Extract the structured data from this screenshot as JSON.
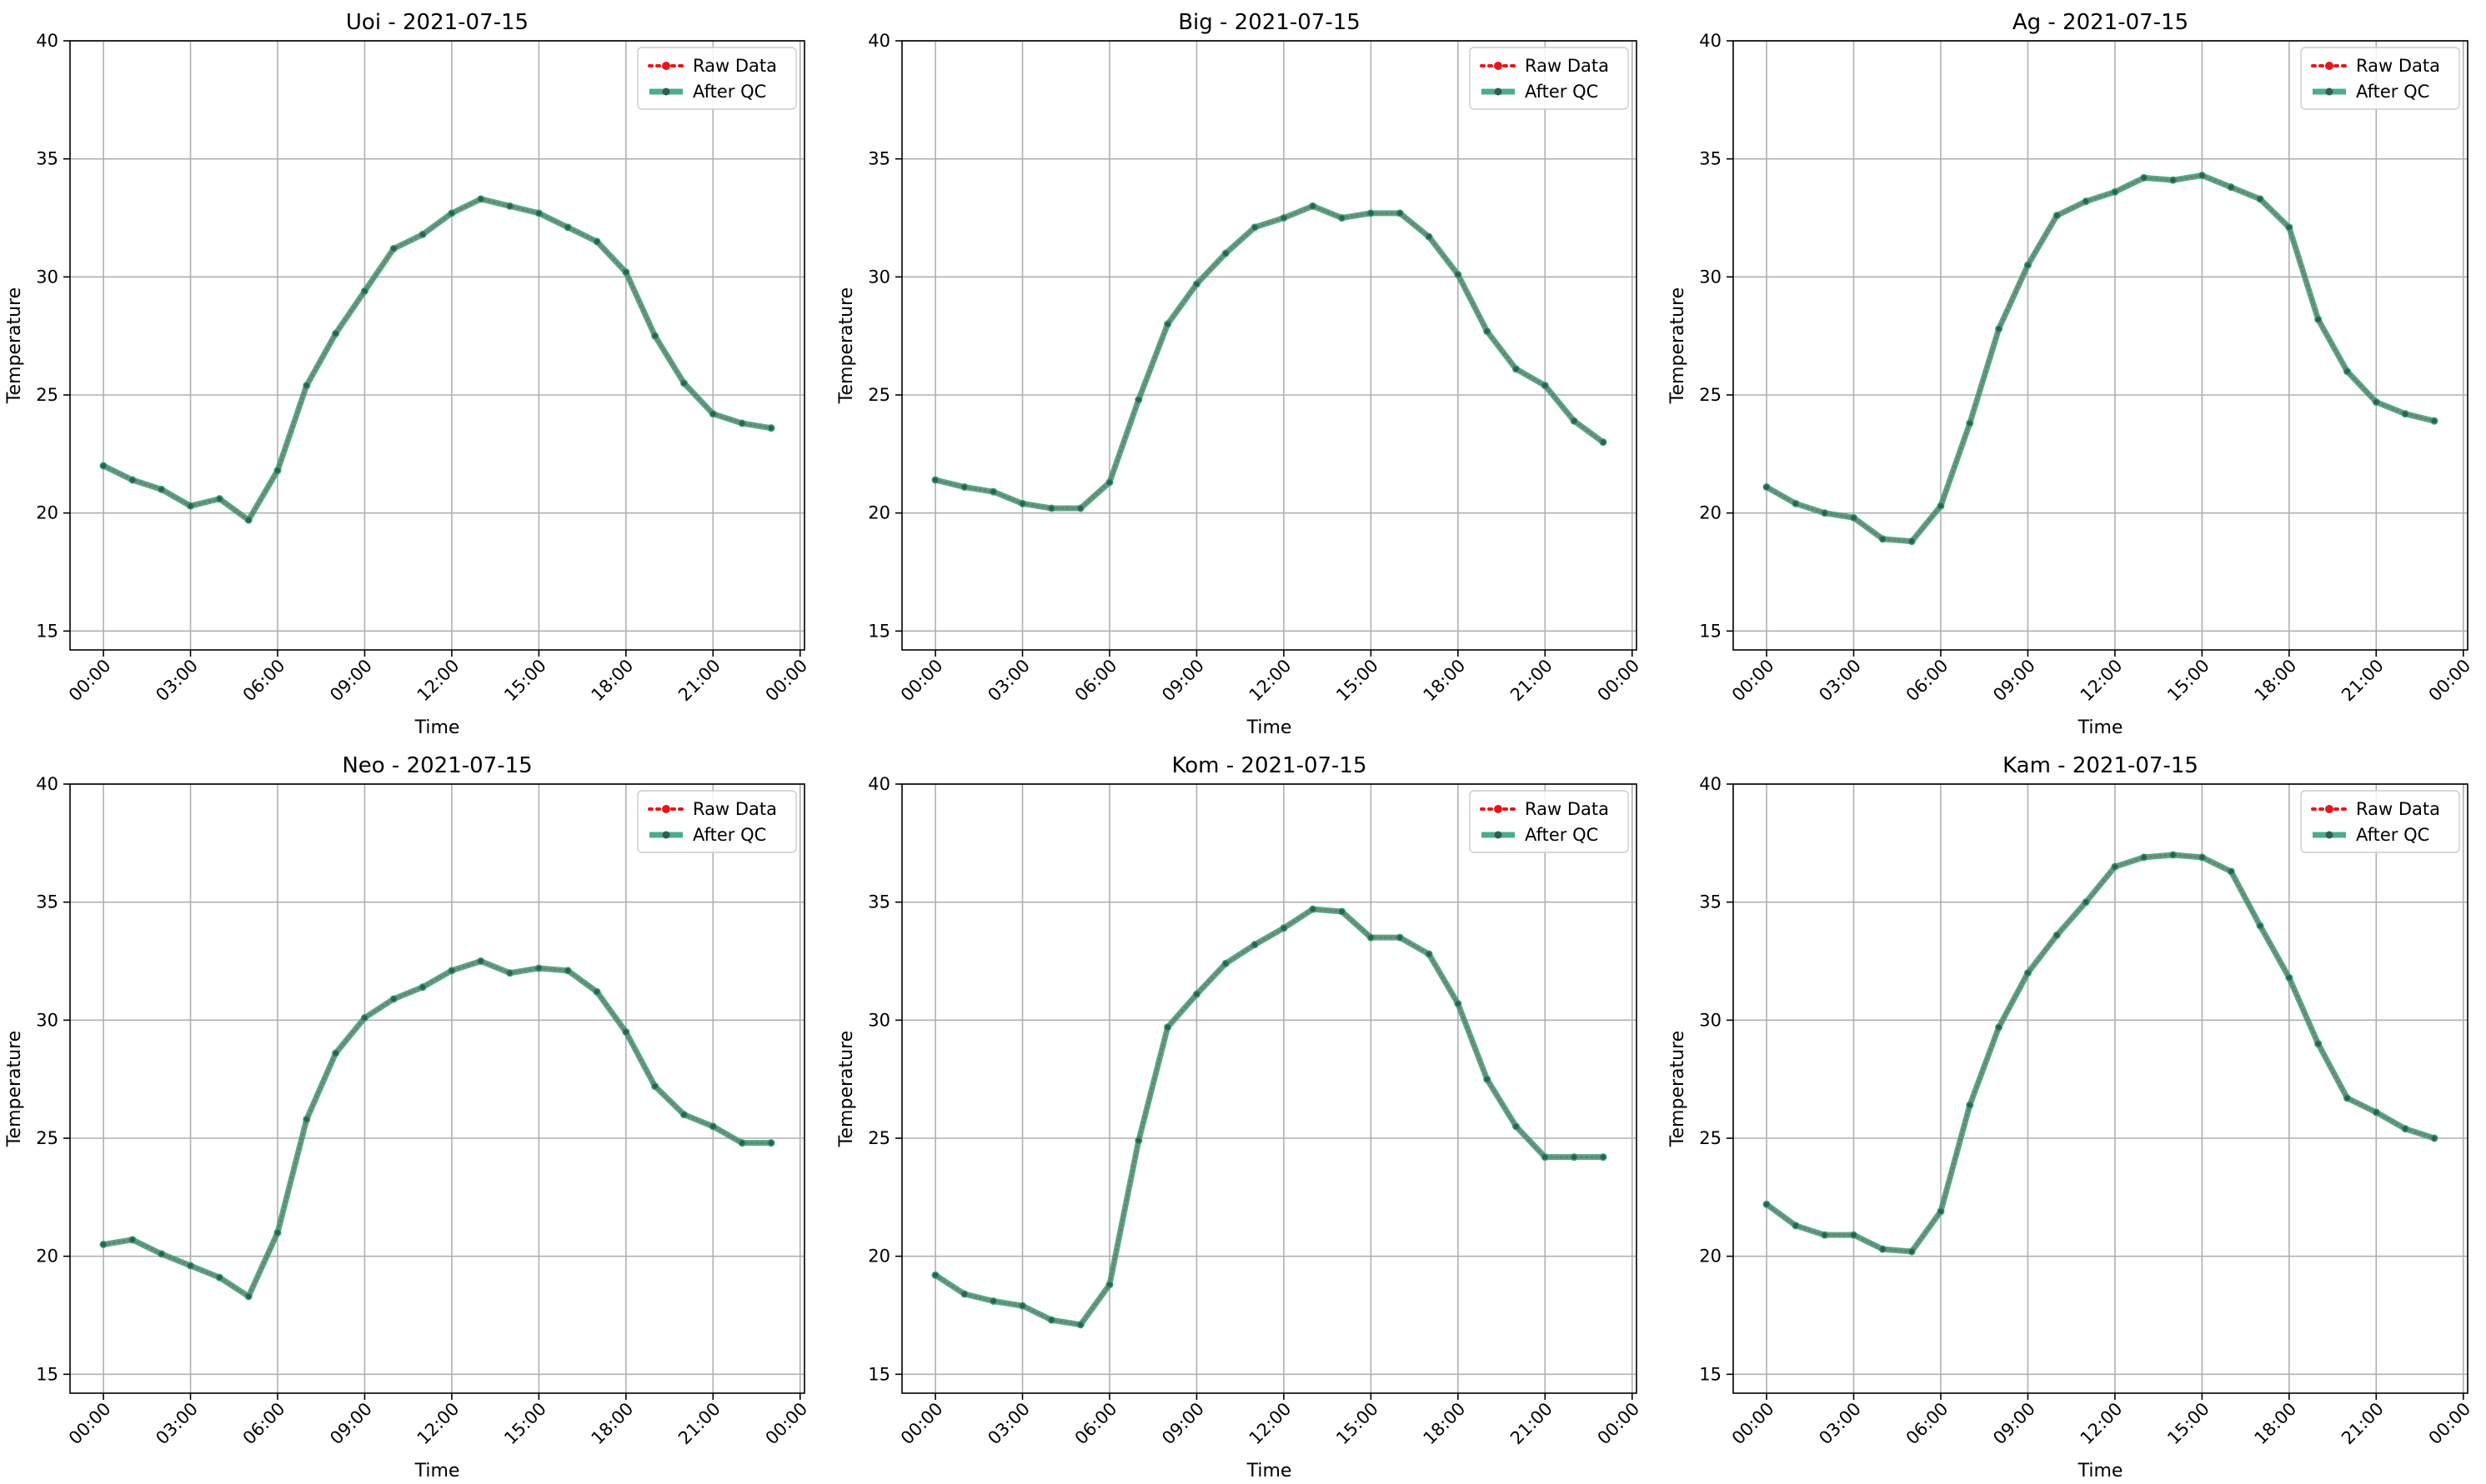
{
  "chart_data": [
    {
      "type": "line",
      "title": "Uoi - 2021-07-15",
      "xlabel": "Time",
      "ylabel": "Temperature",
      "x": [
        "00:00",
        "01:00",
        "02:00",
        "03:00",
        "04:00",
        "05:00",
        "06:00",
        "07:00",
        "08:00",
        "09:00",
        "10:00",
        "11:00",
        "12:00",
        "13:00",
        "14:00",
        "15:00",
        "16:00",
        "17:00",
        "18:00",
        "19:00",
        "20:00",
        "21:00",
        "22:00",
        "23:00"
      ],
      "xticks": [
        "00:00",
        "03:00",
        "06:00",
        "09:00",
        "12:00",
        "15:00",
        "18:00",
        "21:00",
        "00:00"
      ],
      "yticks": [
        "15",
        "20",
        "25",
        "30",
        "35",
        "40"
      ],
      "ylim": [
        14.2,
        40
      ],
      "grid": true,
      "legend": "top-right",
      "series": [
        {
          "name": "Raw Data",
          "style": "dotted",
          "color": "#e8161b",
          "values": [
            22.0,
            21.4,
            21.0,
            20.3,
            20.6,
            19.7,
            21.8,
            25.4,
            27.6,
            29.4,
            31.2,
            31.8,
            32.7,
            33.3,
            33.0,
            32.7,
            32.1,
            31.5,
            30.2,
            27.5,
            25.5,
            24.2,
            23.8,
            23.6
          ]
        },
        {
          "name": "After QC",
          "style": "solid",
          "color": "#2e9e79",
          "values": [
            22.0,
            21.4,
            21.0,
            20.3,
            20.6,
            19.7,
            21.8,
            25.4,
            27.6,
            29.4,
            31.2,
            31.8,
            32.7,
            33.3,
            33.0,
            32.7,
            32.1,
            31.5,
            30.2,
            27.5,
            25.5,
            24.2,
            23.8,
            23.6
          ]
        }
      ]
    },
    {
      "type": "line",
      "title": "Big - 2021-07-15",
      "xlabel": "Time",
      "ylabel": "Temperature",
      "x": [
        "00:00",
        "01:00",
        "02:00",
        "03:00",
        "04:00",
        "05:00",
        "06:00",
        "07:00",
        "08:00",
        "09:00",
        "10:00",
        "11:00",
        "12:00",
        "13:00",
        "14:00",
        "15:00",
        "16:00",
        "17:00",
        "18:00",
        "19:00",
        "20:00",
        "21:00",
        "22:00",
        "23:00"
      ],
      "xticks": [
        "00:00",
        "03:00",
        "06:00",
        "09:00",
        "12:00",
        "15:00",
        "18:00",
        "21:00",
        "00:00"
      ],
      "yticks": [
        "15",
        "20",
        "25",
        "30",
        "35",
        "40"
      ],
      "ylim": [
        14.2,
        40
      ],
      "grid": true,
      "legend": "top-right",
      "series": [
        {
          "name": "Raw Data",
          "style": "dotted",
          "color": "#e8161b",
          "values": [
            21.4,
            21.1,
            20.9,
            20.4,
            20.2,
            20.2,
            21.3,
            24.8,
            28.0,
            29.7,
            31.0,
            32.1,
            32.5,
            33.0,
            32.5,
            32.7,
            32.7,
            31.7,
            30.1,
            27.7,
            26.1,
            25.4,
            23.9,
            23.0
          ]
        },
        {
          "name": "After QC",
          "style": "solid",
          "color": "#2e9e79",
          "values": [
            21.4,
            21.1,
            20.9,
            20.4,
            20.2,
            20.2,
            21.3,
            24.8,
            28.0,
            29.7,
            31.0,
            32.1,
            32.5,
            33.0,
            32.5,
            32.7,
            32.7,
            31.7,
            30.1,
            27.7,
            26.1,
            25.4,
            23.9,
            23.0
          ]
        }
      ]
    },
    {
      "type": "line",
      "title": "Ag - 2021-07-15",
      "xlabel": "Time",
      "ylabel": "Temperature",
      "x": [
        "00:00",
        "01:00",
        "02:00",
        "03:00",
        "04:00",
        "05:00",
        "06:00",
        "07:00",
        "08:00",
        "09:00",
        "10:00",
        "11:00",
        "12:00",
        "13:00",
        "14:00",
        "15:00",
        "16:00",
        "17:00",
        "18:00",
        "19:00",
        "20:00",
        "21:00",
        "22:00",
        "23:00"
      ],
      "xticks": [
        "00:00",
        "03:00",
        "06:00",
        "09:00",
        "12:00",
        "15:00",
        "18:00",
        "21:00",
        "00:00"
      ],
      "yticks": [
        "15",
        "20",
        "25",
        "30",
        "35",
        "40"
      ],
      "ylim": [
        14.2,
        40
      ],
      "grid": true,
      "legend": "top-right",
      "series": [
        {
          "name": "Raw Data",
          "style": "dotted",
          "color": "#e8161b",
          "values": [
            21.1,
            20.4,
            20.0,
            19.8,
            18.9,
            18.8,
            20.3,
            23.8,
            27.8,
            30.5,
            32.6,
            33.2,
            33.6,
            34.2,
            34.1,
            34.3,
            33.8,
            33.3,
            32.1,
            28.2,
            26.0,
            24.7,
            24.2,
            23.9
          ]
        },
        {
          "name": "After QC",
          "style": "solid",
          "color": "#2e9e79",
          "values": [
            21.1,
            20.4,
            20.0,
            19.8,
            18.9,
            18.8,
            20.3,
            23.8,
            27.8,
            30.5,
            32.6,
            33.2,
            33.6,
            34.2,
            34.1,
            34.3,
            33.8,
            33.3,
            32.1,
            28.2,
            26.0,
            24.7,
            24.2,
            23.9
          ]
        }
      ]
    },
    {
      "type": "line",
      "title": "Neo - 2021-07-15",
      "xlabel": "Time",
      "ylabel": "Temperature",
      "x": [
        "00:00",
        "01:00",
        "02:00",
        "03:00",
        "04:00",
        "05:00",
        "06:00",
        "07:00",
        "08:00",
        "09:00",
        "10:00",
        "11:00",
        "12:00",
        "13:00",
        "14:00",
        "15:00",
        "16:00",
        "17:00",
        "18:00",
        "19:00",
        "20:00",
        "21:00",
        "22:00",
        "23:00"
      ],
      "xticks": [
        "00:00",
        "03:00",
        "06:00",
        "09:00",
        "12:00",
        "15:00",
        "18:00",
        "21:00",
        "00:00"
      ],
      "yticks": [
        "15",
        "20",
        "25",
        "30",
        "35",
        "40"
      ],
      "ylim": [
        14.2,
        40
      ],
      "grid": true,
      "legend": "top-right",
      "series": [
        {
          "name": "Raw Data",
          "style": "dotted",
          "color": "#e8161b",
          "values": [
            20.5,
            20.7,
            20.1,
            19.6,
            19.1,
            18.3,
            21.0,
            25.8,
            28.6,
            30.1,
            30.9,
            31.4,
            32.1,
            32.5,
            32.0,
            32.2,
            32.1,
            31.2,
            29.5,
            27.2,
            26.0,
            25.5,
            24.8,
            24.8
          ]
        },
        {
          "name": "After QC",
          "style": "solid",
          "color": "#2e9e79",
          "values": [
            20.5,
            20.7,
            20.1,
            19.6,
            19.1,
            18.3,
            21.0,
            25.8,
            28.6,
            30.1,
            30.9,
            31.4,
            32.1,
            32.5,
            32.0,
            32.2,
            32.1,
            31.2,
            29.5,
            27.2,
            26.0,
            25.5,
            24.8,
            24.8
          ]
        }
      ]
    },
    {
      "type": "line",
      "title": "Kom - 2021-07-15",
      "xlabel": "Time",
      "ylabel": "Temperature",
      "x": [
        "00:00",
        "01:00",
        "02:00",
        "03:00",
        "04:00",
        "05:00",
        "06:00",
        "07:00",
        "08:00",
        "09:00",
        "10:00",
        "11:00",
        "12:00",
        "13:00",
        "14:00",
        "15:00",
        "16:00",
        "17:00",
        "18:00",
        "19:00",
        "20:00",
        "21:00",
        "22:00",
        "23:00"
      ],
      "xticks": [
        "00:00",
        "03:00",
        "06:00",
        "09:00",
        "12:00",
        "15:00",
        "18:00",
        "21:00",
        "00:00"
      ],
      "yticks": [
        "15",
        "20",
        "25",
        "30",
        "35",
        "40"
      ],
      "ylim": [
        14.2,
        40
      ],
      "grid": true,
      "legend": "top-right",
      "series": [
        {
          "name": "Raw Data",
          "style": "dotted",
          "color": "#e8161b",
          "values": [
            19.2,
            18.4,
            18.1,
            17.9,
            17.3,
            17.1,
            18.8,
            24.9,
            29.7,
            31.1,
            32.4,
            33.2,
            33.9,
            34.7,
            34.6,
            33.5,
            33.5,
            32.8,
            30.7,
            27.5,
            25.5,
            24.2,
            24.2,
            24.2
          ]
        },
        {
          "name": "After QC",
          "style": "solid",
          "color": "#2e9e79",
          "values": [
            19.2,
            18.4,
            18.1,
            17.9,
            17.3,
            17.1,
            18.8,
            24.9,
            29.7,
            31.1,
            32.4,
            33.2,
            33.9,
            34.7,
            34.6,
            33.5,
            33.5,
            32.8,
            30.7,
            27.5,
            25.5,
            24.2,
            24.2,
            24.2
          ]
        }
      ]
    },
    {
      "type": "line",
      "title": "Kam - 2021-07-15",
      "xlabel": "Time",
      "ylabel": "Temperature",
      "x": [
        "00:00",
        "01:00",
        "02:00",
        "03:00",
        "04:00",
        "05:00",
        "06:00",
        "07:00",
        "08:00",
        "09:00",
        "10:00",
        "11:00",
        "12:00",
        "13:00",
        "14:00",
        "15:00",
        "16:00",
        "17:00",
        "18:00",
        "19:00",
        "20:00",
        "21:00",
        "22:00",
        "23:00"
      ],
      "xticks": [
        "00:00",
        "03:00",
        "06:00",
        "09:00",
        "12:00",
        "15:00",
        "18:00",
        "21:00",
        "00:00"
      ],
      "yticks": [
        "15",
        "20",
        "25",
        "30",
        "35",
        "40"
      ],
      "ylim": [
        14.2,
        40
      ],
      "grid": true,
      "legend": "top-right",
      "series": [
        {
          "name": "Raw Data",
          "style": "dotted",
          "color": "#e8161b",
          "values": [
            22.2,
            21.3,
            20.9,
            20.9,
            20.3,
            20.2,
            21.9,
            26.4,
            29.7,
            32.0,
            33.6,
            35.0,
            36.5,
            36.9,
            37.0,
            36.9,
            36.3,
            34.0,
            31.8,
            29.0,
            26.7,
            26.1,
            25.4,
            25.0
          ]
        },
        {
          "name": "After QC",
          "style": "solid",
          "color": "#2e9e79",
          "values": [
            22.2,
            21.3,
            20.9,
            20.9,
            20.3,
            20.2,
            21.9,
            26.4,
            29.7,
            32.0,
            33.6,
            35.0,
            36.5,
            36.9,
            37.0,
            36.9,
            36.3,
            34.0,
            31.8,
            29.0,
            26.7,
            26.1,
            25.4,
            25.0
          ]
        }
      ]
    }
  ]
}
